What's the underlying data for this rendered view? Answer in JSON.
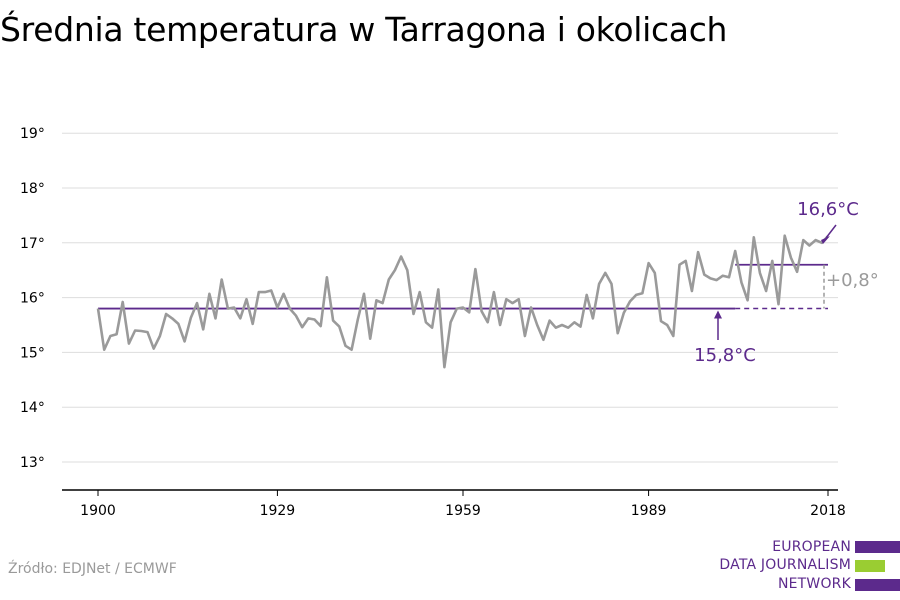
{
  "title": "Średnia temperatura w Tarragona i okolicach",
  "source": "Źródło: EDJNet / ECMWF",
  "logo": {
    "lines": [
      "EUROPEAN",
      "DATA JOURNALISM",
      "NETWORK"
    ],
    "colors": {
      "purple": "#5c2a8c",
      "green": "#9acd32"
    }
  },
  "colors": {
    "series": "#9a9a9a",
    "accent": "#5c2a8c",
    "grid": "#dddddd",
    "axis": "#000000"
  },
  "chart_data": {
    "type": "line",
    "title": "Średnia temperatura w Tarragona i okolicach",
    "xlabel": "",
    "ylabel": "",
    "xlim": [
      1900,
      2018
    ],
    "ylim": [
      12.5,
      19.5
    ],
    "x_ticks": [
      1900,
      1929,
      1959,
      1989,
      2018
    ],
    "x_tick_labels": [
      "1900",
      "1929",
      "1959",
      "1989",
      "2018"
    ],
    "y_ticks": [
      13,
      14,
      15,
      16,
      17,
      18,
      19
    ],
    "y_tick_labels": [
      "13°",
      "14°",
      "15°",
      "16°",
      "17°",
      "18°",
      "19°"
    ],
    "grid": true,
    "series": [
      {
        "x": [
          1900,
          1901,
          1902,
          1903,
          1904,
          1905,
          1906,
          1907,
          1908,
          1909,
          1910,
          1911,
          1912,
          1913,
          1914,
          1915,
          1916,
          1917,
          1918,
          1919,
          1920,
          1921,
          1922,
          1923,
          1924,
          1925,
          1926,
          1927,
          1928,
          1929,
          1930,
          1931,
          1932,
          1933,
          1934,
          1935,
          1936,
          1937,
          1938,
          1939,
          1940,
          1941,
          1942,
          1943,
          1944,
          1945,
          1946,
          1947,
          1948,
          1949,
          1950,
          1951,
          1952,
          1953,
          1954,
          1955,
          1956,
          1957,
          1958,
          1959,
          1960,
          1961,
          1962,
          1963,
          1964,
          1965,
          1966,
          1967,
          1968,
          1969,
          1970,
          1971,
          1972,
          1973,
          1974,
          1975,
          1976,
          1977,
          1978,
          1979,
          1980,
          1981,
          1982,
          1983,
          1984,
          1985,
          1986,
          1987,
          1988,
          1989,
          1990,
          1991,
          1992,
          1993,
          1994,
          1995,
          1996,
          1997,
          1998,
          1999,
          2000,
          2001,
          2002,
          2003,
          2004,
          2005,
          2006,
          2007,
          2008,
          2009,
          2010,
          2011,
          2012,
          2013,
          2014,
          2015,
          2016,
          2017,
          2018
        ],
        "values": [
          15.8,
          15.05,
          15.3,
          15.33,
          15.92,
          15.16,
          15.4,
          15.39,
          15.37,
          15.07,
          15.3,
          15.7,
          15.62,
          15.52,
          15.2,
          15.63,
          15.9,
          15.42,
          16.07,
          15.62,
          16.33,
          15.8,
          15.82,
          15.62,
          15.97,
          15.52,
          16.1,
          16.1,
          16.13,
          15.82,
          16.07,
          15.8,
          15.67,
          15.46,
          15.62,
          15.6,
          15.48,
          16.37,
          15.58,
          15.47,
          15.12,
          15.05,
          15.6,
          16.07,
          15.25,
          15.95,
          15.9,
          16.33,
          16.5,
          16.75,
          16.5,
          15.7,
          16.1,
          15.55,
          15.45,
          16.15,
          14.73,
          15.55,
          15.8,
          15.82,
          15.73,
          16.52,
          15.75,
          15.55,
          16.1,
          15.5,
          15.97,
          15.9,
          15.97,
          15.3,
          15.82,
          15.5,
          15.23,
          15.58,
          15.45,
          15.5,
          15.45,
          15.55,
          15.47,
          16.05,
          15.62,
          16.25,
          16.45,
          16.25,
          15.35,
          15.72,
          15.93,
          16.05,
          16.08,
          16.63,
          16.45,
          15.57,
          15.5,
          15.3,
          16.6,
          16.67,
          16.12,
          16.83,
          16.42,
          16.35,
          16.32,
          16.4,
          16.37,
          16.85,
          16.28,
          15.95,
          17.1,
          16.45,
          16.12,
          16.67,
          15.88,
          17.13,
          16.73,
          16.47,
          17.05,
          16.95,
          17.05,
          17.0,
          17.12
        ]
      }
    ],
    "reference_lines": [
      {
        "value": 15.8,
        "x_start": 1900,
        "x_end": 2003,
        "label": "15,8°C"
      },
      {
        "value": 16.6,
        "x_start": 2003,
        "x_end": 2018,
        "label": "16,6°C"
      }
    ],
    "difference_label": "+0,8°"
  }
}
